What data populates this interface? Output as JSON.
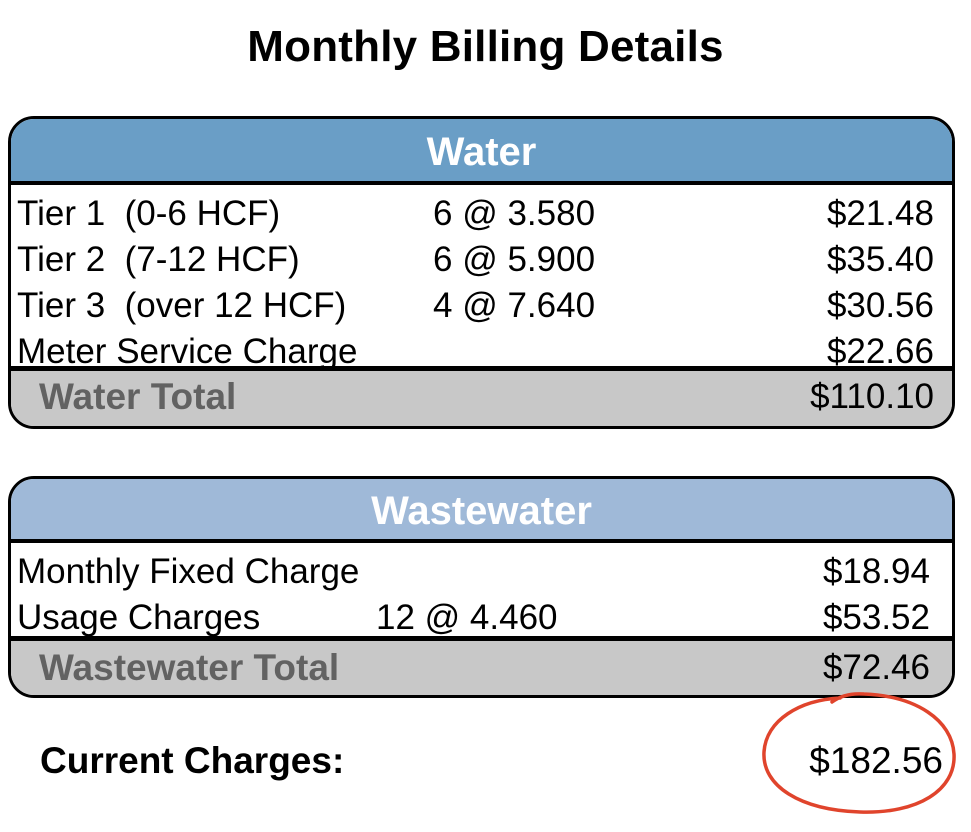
{
  "title": "Monthly Billing Details",
  "water": {
    "header": "Water",
    "rows": [
      {
        "label": "Tier 1  (0-6 HCF)",
        "rate": "6 @ 3.580",
        "amount": "$21.48"
      },
      {
        "label": "Tier 2  (7-12 HCF)",
        "rate": "6 @ 5.900",
        "amount": "$35.40"
      },
      {
        "label": "Tier 3  (over 12 HCF)",
        "rate": "4 @ 7.640",
        "amount": "$30.56"
      },
      {
        "label": "Meter Service Charge",
        "rate": "",
        "amount": "$22.66"
      }
    ],
    "total_label": "Water Total",
    "total_value": "$110.10"
  },
  "wastewater": {
    "header": "Wastewater",
    "rows": [
      {
        "label": "Monthly Fixed Charge",
        "rate": "",
        "amount": "$18.94"
      },
      {
        "label": "Usage Charges",
        "rate": "12 @ 4.460",
        "amount": "$53.52"
      }
    ],
    "total_label": "Wastewater Total",
    "total_value": "$72.46"
  },
  "current": {
    "label": "Current Charges:",
    "value": "$182.56"
  },
  "colors": {
    "water_header": "#6a9ec6",
    "wastewater_header": "#9fb9d8",
    "total_band": "#c8c8c8",
    "circle_annotation": "#e0442c"
  }
}
